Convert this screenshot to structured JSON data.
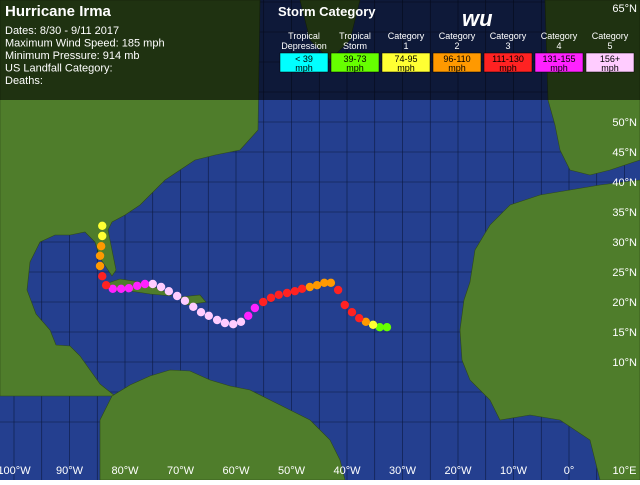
{
  "header": {
    "title": "Hurricane Irma",
    "lines": [
      "Dates: 8/30 - 9/11 2017",
      "Maximum Wind Speed: 185 mph",
      "Minimum Pressure: 914 mb",
      "US Landfall Category:",
      "Deaths:"
    ]
  },
  "legend": {
    "title": "Storm Category",
    "logo": "wu",
    "items": [
      {
        "name": [
          "Tropical",
          "Depression"
        ],
        "range": "< 39",
        "unit": "mph",
        "color": "#00ffff"
      },
      {
        "name": [
          "Tropical",
          "Storm"
        ],
        "range": "39-73",
        "unit": "mph",
        "color": "#66ff00"
      },
      {
        "name": [
          "Category",
          "1"
        ],
        "range": "74-95",
        "unit": "mph",
        "color": "#ffff33"
      },
      {
        "name": [
          "Category",
          "2"
        ],
        "range": "96-110",
        "unit": "mph",
        "color": "#ff9900"
      },
      {
        "name": [
          "Category",
          "3"
        ],
        "range": "111-130",
        "unit": "mph",
        "color": "#ff2222"
      },
      {
        "name": [
          "Category",
          "4"
        ],
        "range": "131-155",
        "unit": "mph",
        "color": "#ff22ff"
      },
      {
        "name": [
          "Category",
          "5"
        ],
        "range": "156+",
        "unit": "mph",
        "color": "#ffccff"
      }
    ]
  },
  "map": {
    "lon_labels": [
      {
        "value": -100,
        "label": "100°W"
      },
      {
        "value": -90,
        "label": "90°W"
      },
      {
        "value": -80,
        "label": "80°W"
      },
      {
        "value": -70,
        "label": "70°W"
      },
      {
        "value": -60,
        "label": "60°W"
      },
      {
        "value": -50,
        "label": "50°W"
      },
      {
        "value": -40,
        "label": "40°W"
      },
      {
        "value": -30,
        "label": "30°W"
      },
      {
        "value": -20,
        "label": "20°W"
      },
      {
        "value": -10,
        "label": "10°W"
      },
      {
        "value": 0,
        "label": "0°"
      },
      {
        "value": 10,
        "label": "10°E"
      }
    ],
    "lat_labels": [
      {
        "value": 65,
        "label": "65°N"
      },
      {
        "value": 50,
        "label": "50°N"
      },
      {
        "value": 45,
        "label": "45°N"
      },
      {
        "value": 40,
        "label": "40°N"
      },
      {
        "value": 35,
        "label": "35°N"
      },
      {
        "value": 30,
        "label": "30°N"
      },
      {
        "value": 25,
        "label": "25°N"
      },
      {
        "value": 20,
        "label": "20°N"
      },
      {
        "value": 15,
        "label": "15°N"
      },
      {
        "value": 10,
        "label": "10°N"
      }
    ],
    "track": [
      [
        -32.8,
        15.8,
        1
      ],
      [
        -34.1,
        15.8,
        1
      ],
      [
        -35.3,
        16.2,
        2
      ],
      [
        -36.6,
        16.7,
        3
      ],
      [
        -37.8,
        17.3,
        4
      ],
      [
        -39.1,
        18.3,
        4
      ],
      [
        -40.4,
        19.5,
        4
      ],
      [
        -41.6,
        22.0,
        4
      ],
      [
        -42.9,
        23.2,
        3
      ],
      [
        -44.1,
        23.2,
        3
      ],
      [
        -45.4,
        22.8,
        3
      ],
      [
        -46.7,
        22.5,
        3
      ],
      [
        -48.1,
        22.2,
        4
      ],
      [
        -49.4,
        21.8,
        4
      ],
      [
        -50.8,
        21.5,
        4
      ],
      [
        -52.3,
        21.2,
        4
      ],
      [
        -53.7,
        20.7,
        4
      ],
      [
        -55.1,
        20.0,
        4
      ],
      [
        -56.6,
        19.0,
        5
      ],
      [
        -57.8,
        17.7,
        5
      ],
      [
        -59.1,
        16.7,
        6
      ],
      [
        -60.5,
        16.3,
        6
      ],
      [
        -62.0,
        16.5,
        6
      ],
      [
        -63.4,
        17.0,
        6
      ],
      [
        -64.9,
        17.7,
        6
      ],
      [
        -66.3,
        18.3,
        6
      ],
      [
        -67.7,
        19.2,
        6
      ],
      [
        -69.2,
        20.2,
        6
      ],
      [
        -70.6,
        21.0,
        6
      ],
      [
        -72.1,
        21.8,
        6
      ],
      [
        -73.5,
        22.5,
        6
      ],
      [
        -75.0,
        23.0,
        6
      ],
      [
        -76.4,
        23.0,
        5
      ],
      [
        -77.8,
        22.7,
        5
      ],
      [
        -79.3,
        22.3,
        5
      ],
      [
        -80.7,
        22.2,
        5
      ],
      [
        -82.2,
        22.2,
        5
      ],
      [
        -83.4,
        22.8,
        4
      ],
      [
        -84.1,
        24.3,
        4
      ],
      [
        -84.5,
        26.0,
        3
      ],
      [
        -84.5,
        27.7,
        3
      ],
      [
        -84.3,
        29.3,
        3
      ],
      [
        -84.1,
        31.0,
        2
      ],
      [
        -84.1,
        32.7,
        2
      ]
    ]
  }
}
